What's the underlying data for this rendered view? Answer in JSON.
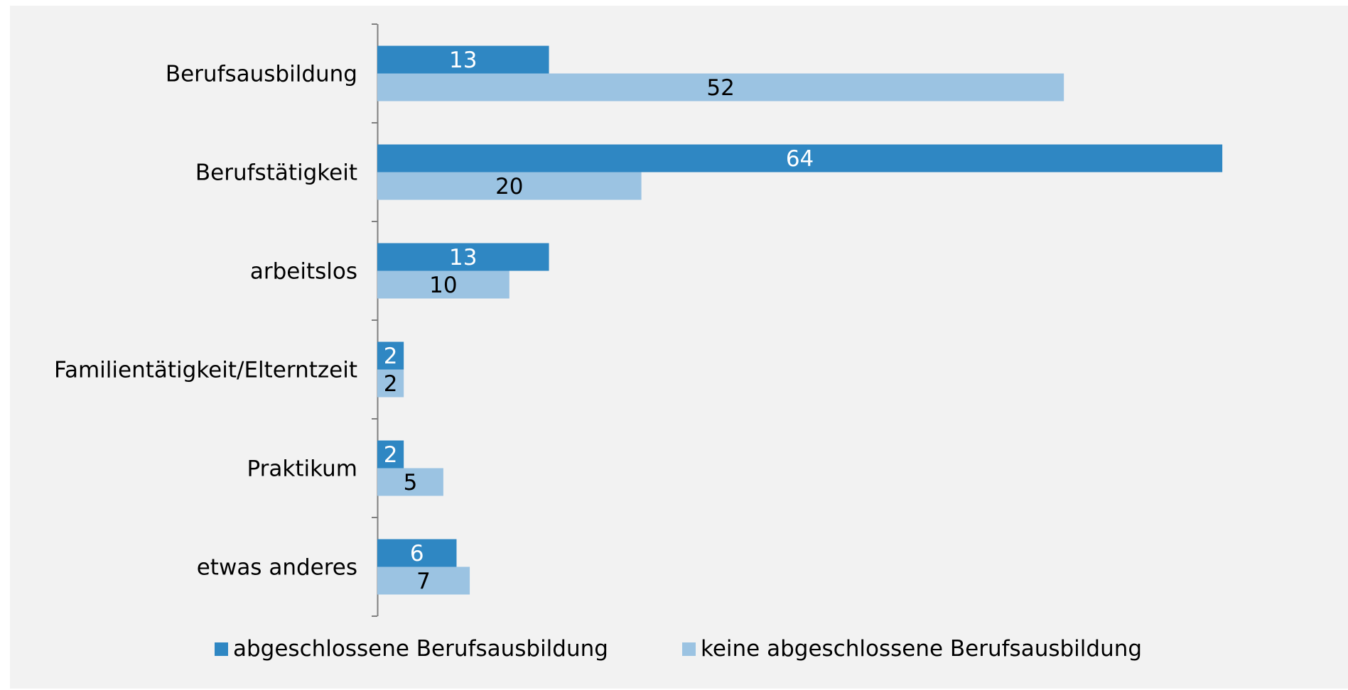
{
  "chart_data": {
    "type": "bar",
    "orientation": "horizontal",
    "categories": [
      "Berufsausbildung",
      "Berufstätigkeit",
      "arbeitslos",
      "Familientätigkeit/Elterntzeit",
      "Praktikum",
      "etwas anderes"
    ],
    "series": [
      {
        "name": "abgeschlossene Berufsausbildung",
        "values": [
          13,
          64,
          13,
          2,
          2,
          6
        ],
        "color": "#2f87c3",
        "label_color": "#ffffff"
      },
      {
        "name": "keine abgeschlossene Berufsausbildung",
        "values": [
          52,
          20,
          10,
          2,
          5,
          7
        ],
        "color": "#9bc3e2",
        "label_color": "#000000"
      }
    ],
    "xlim": [
      0,
      66
    ],
    "data_labels": true,
    "grid": false,
    "legend_position": "bottom",
    "axis_color": "#7f7f7f"
  }
}
